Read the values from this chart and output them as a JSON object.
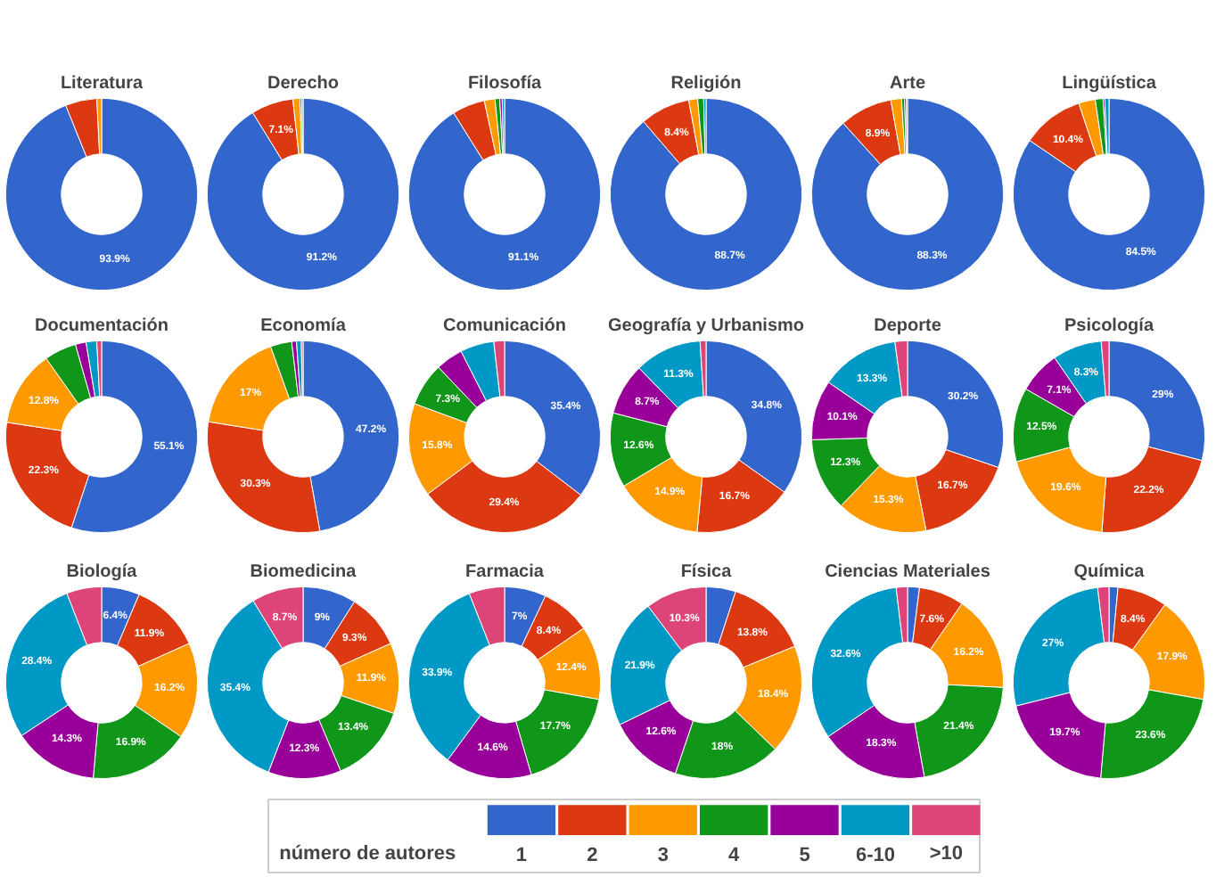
{
  "chart_data": [
    {
      "type": "donut",
      "title": "Literatura",
      "categories": [
        "1",
        "2",
        "3",
        "4",
        "5",
        "6-10",
        ">10"
      ],
      "values": [
        93.9,
        5.3,
        0.8,
        0,
        0,
        0,
        0
      ],
      "colors": [
        "#3366cc",
        "#dc3912",
        "#ff9900",
        "#109618",
        "#990099",
        "#0099c6",
        "#dd4477"
      ],
      "value_labels": [
        "93.9%",
        null,
        null,
        null,
        null,
        null,
        null
      ],
      "legend": "bottom",
      "legend_title": "número de autores"
    },
    {
      "type": "donut",
      "title": "Derecho",
      "categories": [
        null,
        null,
        null,
        null,
        null,
        null,
        null
      ],
      "values": [
        91.2,
        7.1,
        1.2,
        0.3,
        0,
        0.2,
        0
      ],
      "colors": [
        "#3366cc",
        "#dc3912",
        "#ff9900",
        "#109618",
        "#990099",
        "#0099c6",
        "#dd4477"
      ],
      "value_labels": [
        "91.2%",
        "7.1%",
        null,
        null,
        null,
        null,
        null
      ]
    },
    {
      "type": "donut",
      "title": "Filosofía",
      "categories": [
        null,
        null,
        null,
        null,
        null,
        null,
        null
      ],
      "values": [
        91.1,
        5.5,
        1.8,
        0.8,
        0.4,
        0.4,
        0
      ],
      "colors": [
        "#3366cc",
        "#dc3912",
        "#ff9900",
        "#109618",
        "#990099",
        "#0099c6",
        "#dd4477"
      ],
      "value_labels": [
        "91.1%",
        null,
        null,
        null,
        null,
        null,
        null
      ]
    },
    {
      "type": "donut",
      "title": "Religión",
      "categories": [
        null,
        null,
        null,
        null,
        null,
        null,
        null
      ],
      "values": [
        88.7,
        8.4,
        1.5,
        1.0,
        0,
        0.4,
        0
      ],
      "colors": [
        "#3366cc",
        "#dc3912",
        "#ff9900",
        "#109618",
        "#990099",
        "#0099c6",
        "#dd4477"
      ],
      "value_labels": [
        "88.7%",
        "8.4%",
        null,
        null,
        null,
        null,
        null
      ]
    },
    {
      "type": "donut",
      "title": "Arte",
      "categories": [
        null,
        null,
        null,
        null,
        null,
        null,
        null
      ],
      "values": [
        88.3,
        8.9,
        1.8,
        0.5,
        0.3,
        0.2,
        0
      ],
      "colors": [
        "#3366cc",
        "#dc3912",
        "#ff9900",
        "#109618",
        "#990099",
        "#0099c6",
        "#dd4477"
      ],
      "value_labels": [
        "88.3%",
        "8.9%",
        null,
        null,
        null,
        null,
        null
      ]
    },
    {
      "type": "donut",
      "title": "Lingüística",
      "categories": [
        null,
        null,
        null,
        null,
        null,
        null,
        null
      ],
      "values": [
        84.5,
        10.4,
        2.8,
        1.3,
        0.3,
        0.7,
        0
      ],
      "colors": [
        "#3366cc",
        "#dc3912",
        "#ff9900",
        "#109618",
        "#990099",
        "#0099c6",
        "#dd4477"
      ],
      "value_labels": [
        "84.5%",
        "10.4%",
        null,
        null,
        null,
        null,
        null
      ]
    },
    {
      "type": "donut",
      "title": "Documentación",
      "categories": [
        null,
        null,
        null,
        null,
        null,
        null,
        null
      ],
      "values": [
        55.1,
        22.3,
        12.8,
        5.4,
        1.8,
        1.8,
        0.8
      ],
      "colors": [
        "#3366cc",
        "#dc3912",
        "#ff9900",
        "#109618",
        "#990099",
        "#0099c6",
        "#dd4477"
      ],
      "value_labels": [
        "55.1%",
        "22.3%",
        "12.8%",
        null,
        null,
        null,
        null
      ]
    },
    {
      "type": "donut",
      "title": "Economía",
      "categories": [
        null,
        null,
        null,
        null,
        null,
        null,
        null
      ],
      "values": [
        47.2,
        30.3,
        17,
        3.6,
        0.8,
        0.8,
        0.3
      ],
      "colors": [
        "#3366cc",
        "#dc3912",
        "#ff9900",
        "#109618",
        "#990099",
        "#0099c6",
        "#dd4477"
      ],
      "value_labels": [
        "47.2%",
        "30.3%",
        "17%",
        null,
        null,
        null,
        null
      ]
    },
    {
      "type": "donut",
      "title": "Comunicación",
      "categories": [
        null,
        null,
        null,
        null,
        null,
        null,
        null
      ],
      "values": [
        35.4,
        29.4,
        15.8,
        7.3,
        4.6,
        5.7,
        1.8
      ],
      "colors": [
        "#3366cc",
        "#dc3912",
        "#ff9900",
        "#109618",
        "#990099",
        "#0099c6",
        "#dd4477"
      ],
      "value_labels": [
        "35.4%",
        "29.4%",
        "15.8%",
        "7.3%",
        null,
        null,
        null
      ]
    },
    {
      "type": "donut",
      "title": "Geografía y Urbanismo",
      "categories": [
        null,
        null,
        null,
        null,
        null,
        null,
        null
      ],
      "values": [
        34.8,
        16.7,
        14.9,
        12.6,
        8.7,
        11.3,
        1.0
      ],
      "colors": [
        "#3366cc",
        "#dc3912",
        "#ff9900",
        "#109618",
        "#990099",
        "#0099c6",
        "#dd4477"
      ],
      "value_labels": [
        "34.8%",
        "16.7%",
        "14.9%",
        "12.6%",
        "8.7%",
        "11.3%",
        null
      ]
    },
    {
      "type": "donut",
      "title": "Deporte",
      "categories": [
        null,
        null,
        null,
        null,
        null,
        null,
        null
      ],
      "values": [
        30.2,
        16.7,
        15.3,
        12.3,
        10.1,
        13.3,
        2.1
      ],
      "colors": [
        "#3366cc",
        "#dc3912",
        "#ff9900",
        "#109618",
        "#990099",
        "#0099c6",
        "#dd4477"
      ],
      "value_labels": [
        "30.2%",
        "16.7%",
        "15.3%",
        "12.3%",
        "10.1%",
        "13.3%",
        null
      ]
    },
    {
      "type": "donut",
      "title": "Psicología",
      "categories": [
        null,
        null,
        null,
        null,
        null,
        null,
        null
      ],
      "values": [
        29,
        22.2,
        19.6,
        12.5,
        7.1,
        8.3,
        1.3
      ],
      "colors": [
        "#3366cc",
        "#dc3912",
        "#ff9900",
        "#109618",
        "#990099",
        "#0099c6",
        "#dd4477"
      ],
      "value_labels": [
        "29%",
        "22.2%",
        "19.6%",
        "12.5%",
        "7.1%",
        "8.3%",
        null
      ]
    },
    {
      "type": "donut",
      "title": "Biología",
      "categories": [
        null,
        null,
        null,
        null,
        null,
        null,
        null
      ],
      "values": [
        6.4,
        11.9,
        16.2,
        16.9,
        14.3,
        28.4,
        5.9
      ],
      "colors": [
        "#3366cc",
        "#dc3912",
        "#ff9900",
        "#109618",
        "#990099",
        "#0099c6",
        "#dd4477"
      ],
      "value_labels": [
        "6.4%",
        "11.9%",
        "16.2%",
        "16.9%",
        "14.3%",
        "28.4%",
        null
      ]
    },
    {
      "type": "donut",
      "title": "Biomedicina",
      "categories": [
        null,
        null,
        null,
        null,
        null,
        null,
        null
      ],
      "values": [
        9,
        9.3,
        11.9,
        13.4,
        12.3,
        35.4,
        8.7
      ],
      "colors": [
        "#3366cc",
        "#dc3912",
        "#ff9900",
        "#109618",
        "#990099",
        "#0099c6",
        "#dd4477"
      ],
      "value_labels": [
        "9%",
        "9.3%",
        "11.9%",
        "13.4%",
        "12.3%",
        "35.4%",
        "8.7%"
      ]
    },
    {
      "type": "donut",
      "title": "Farmacia",
      "categories": [
        null,
        null,
        null,
        null,
        null,
        null,
        null
      ],
      "values": [
        7,
        8.4,
        12.4,
        17.7,
        14.6,
        33.9,
        6.0
      ],
      "colors": [
        "#3366cc",
        "#dc3912",
        "#ff9900",
        "#109618",
        "#990099",
        "#0099c6",
        "#dd4477"
      ],
      "value_labels": [
        "7%",
        "8.4%",
        "12.4%",
        "17.7%",
        "14.6%",
        "33.9%",
        null
      ]
    },
    {
      "type": "donut",
      "title": "Física",
      "categories": [
        null,
        null,
        null,
        null,
        null,
        null,
        null
      ],
      "values": [
        5.0,
        13.8,
        18.4,
        18,
        12.6,
        21.9,
        10.3
      ],
      "colors": [
        "#3366cc",
        "#dc3912",
        "#ff9900",
        "#109618",
        "#990099",
        "#0099c6",
        "#dd4477"
      ],
      "value_labels": [
        null,
        "13.8%",
        "18.4%",
        "18%",
        "12.6%",
        "21.9%",
        "10.3%"
      ]
    },
    {
      "type": "donut",
      "title": "Ciencias Materiales",
      "categories": [
        null,
        null,
        null,
        null,
        null,
        null,
        null
      ],
      "values": [
        2.0,
        7.6,
        16.2,
        21.4,
        18.3,
        32.6,
        1.9
      ],
      "colors": [
        "#3366cc",
        "#dc3912",
        "#ff9900",
        "#109618",
        "#990099",
        "#0099c6",
        "#dd4477"
      ],
      "value_labels": [
        null,
        "7.6%",
        "16.2%",
        "21.4%",
        "18.3%",
        "32.6%",
        null
      ]
    },
    {
      "type": "donut",
      "title": "Química",
      "categories": [
        null,
        null,
        null,
        null,
        null,
        null,
        null
      ],
      "values": [
        1.5,
        8.4,
        17.9,
        23.6,
        19.7,
        27,
        1.9
      ],
      "colors": [
        "#3366cc",
        "#dc3912",
        "#ff9900",
        "#109618",
        "#990099",
        "#0099c6",
        "#dd4477"
      ],
      "value_labels": [
        null,
        "8.4%",
        "17.9%",
        "23.6%",
        "19.7%",
        "27%",
        null
      ]
    }
  ]
}
